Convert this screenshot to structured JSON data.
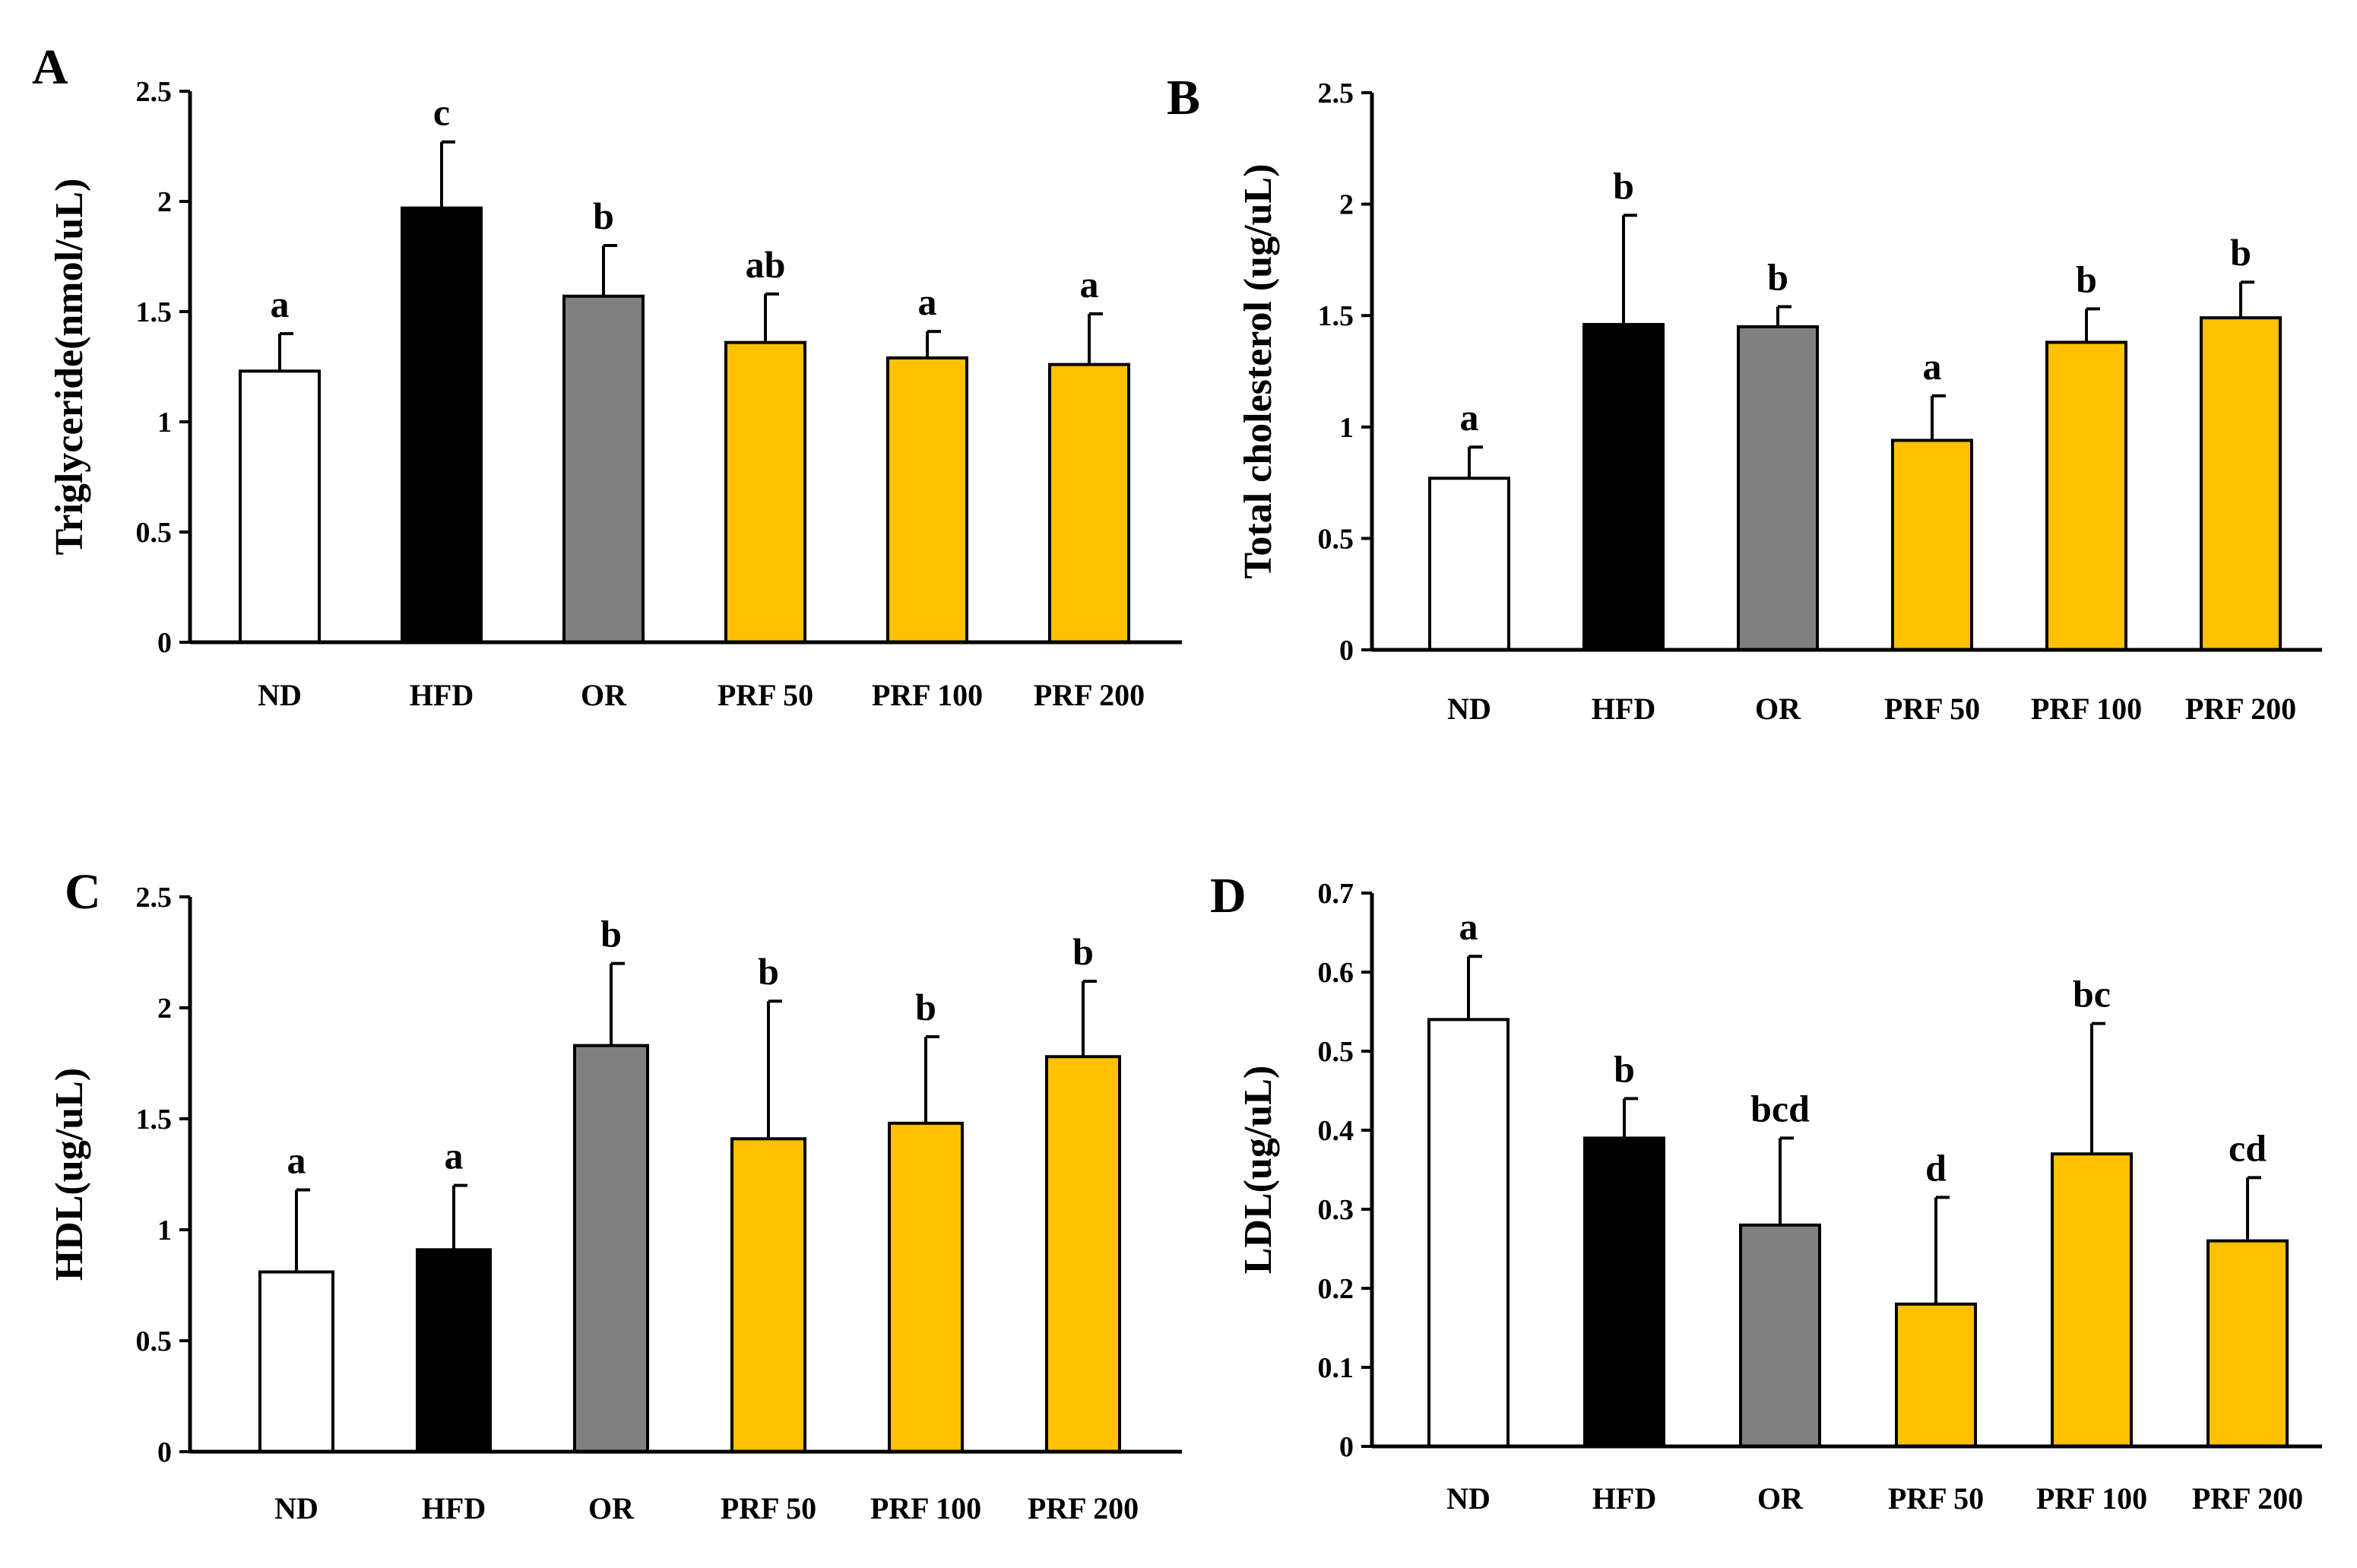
{
  "chart_data": [
    {
      "type": "bar",
      "panel": "A",
      "ylabel": "Triglyceride(nmol/uL)",
      "ylim": [
        0,
        2.5
      ],
      "yticks": [
        "0",
        "0.5",
        "1",
        "1.5",
        "2",
        "2.5"
      ],
      "categories": [
        "ND",
        "HFD",
        "OR",
        "PRF 50",
        "PRF 100",
        "PRF 200"
      ],
      "values": [
        1.23,
        1.97,
        1.57,
        1.36,
        1.29,
        1.26
      ],
      "errors": [
        0.17,
        0.3,
        0.23,
        0.22,
        0.12,
        0.23
      ],
      "letters": [
        "a",
        "c",
        "b",
        "ab",
        "a",
        "a"
      ],
      "colors": [
        "#ffffff",
        "#000000",
        "#808080",
        "#ffc000",
        "#ffc000",
        "#ffc000"
      ]
    },
    {
      "type": "bar",
      "panel": "B",
      "ylabel": "Total cholesterol (ug/uL)",
      "ylim": [
        0,
        2.5
      ],
      "yticks": [
        "0",
        "0.5",
        "1",
        "1.5",
        "2",
        "2.5"
      ],
      "categories": [
        "ND",
        "HFD",
        "OR",
        "PRF 50",
        "PRF 100",
        "PRF 200"
      ],
      "values": [
        0.77,
        1.46,
        1.45,
        0.94,
        1.38,
        1.49
      ],
      "errors": [
        0.14,
        0.49,
        0.09,
        0.2,
        0.15,
        0.16
      ],
      "letters": [
        "a",
        "b",
        "b",
        "a",
        "b",
        "b"
      ],
      "colors": [
        "#ffffff",
        "#000000",
        "#808080",
        "#ffc000",
        "#ffc000",
        "#ffc000"
      ]
    },
    {
      "type": "bar",
      "panel": "C",
      "ylabel": "HDL(ug/uL)",
      "ylim": [
        0,
        2.5
      ],
      "yticks": [
        "0",
        "0.5",
        "1",
        "1.5",
        "2",
        "2.5"
      ],
      "categories": [
        "ND",
        "HFD",
        "OR",
        "PRF 50",
        "PRF 100",
        "PRF 200"
      ],
      "values": [
        0.81,
        0.91,
        1.83,
        1.41,
        1.48,
        1.78
      ],
      "errors": [
        0.37,
        0.29,
        0.37,
        0.62,
        0.39,
        0.34
      ],
      "letters": [
        "a",
        "a",
        "b",
        "b",
        "b",
        "b"
      ],
      "colors": [
        "#ffffff",
        "#000000",
        "#808080",
        "#ffc000",
        "#ffc000",
        "#ffc000"
      ]
    },
    {
      "type": "bar",
      "panel": "D",
      "ylabel": "LDL(ug/uL)",
      "ylim": [
        0,
        0.7
      ],
      "yticks": [
        "0",
        "0.1",
        "0.2",
        "0.3",
        "0.4",
        "0.5",
        "0.6",
        "0.7"
      ],
      "categories": [
        "ND",
        "HFD",
        "OR",
        "PRF 50",
        "PRF 100",
        "PRF 200"
      ],
      "values": [
        0.54,
        0.39,
        0.28,
        0.18,
        0.37,
        0.26
      ],
      "errors": [
        0.08,
        0.05,
        0.11,
        0.135,
        0.165,
        0.08
      ],
      "letters": [
        "a",
        "b",
        "bcd",
        "d",
        "bc",
        "cd"
      ],
      "colors": [
        "#ffffff",
        "#000000",
        "#808080",
        "#ffc000",
        "#ffc000",
        "#ffc000"
      ]
    }
  ]
}
